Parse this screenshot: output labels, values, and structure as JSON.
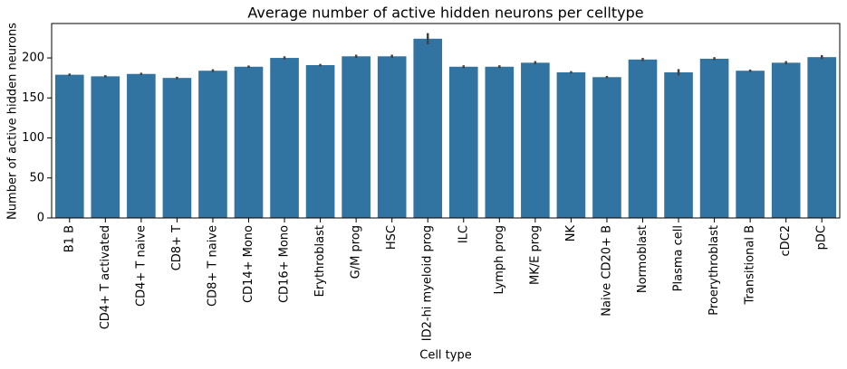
{
  "chart_data": {
    "type": "bar",
    "title": "Average number of active hidden neurons per celltype",
    "xlabel": "Cell type",
    "ylabel": "Number of active hidden neurons",
    "categories": [
      "B1 B",
      "CD4+ T activated",
      "CD4+ T naive",
      "CD8+ T",
      "CD8+ T naive",
      "CD14+ Mono",
      "CD16+ Mono",
      "Erythroblast",
      "G/M prog",
      "HSC",
      "ID2-hi myeloid prog",
      "ILC",
      "Lymph prog",
      "MK/E prog",
      "NK",
      "Naive CD20+ B",
      "Normoblast",
      "Plasma cell",
      "Proerythroblast",
      "Transitional B",
      "cDC2",
      "pDC"
    ],
    "values": [
      179,
      177,
      180,
      175,
      184,
      189,
      200,
      191,
      202,
      202,
      224,
      189,
      189,
      194,
      182,
      176,
      198,
      182,
      199,
      184,
      194,
      201
    ],
    "errors": [
      1.5,
      1.5,
      1.5,
      1.5,
      1.8,
      1.5,
      2,
      1.5,
      2,
      2,
      7,
      1.8,
      1.8,
      2,
      1.5,
      1.5,
      2,
      4,
      2,
      1.5,
      2,
      2.5
    ],
    "color": "#3274a1",
    "error_color": "#424242",
    "ylim": [
      0,
      243
    ],
    "yticks": [
      0,
      50,
      100,
      150,
      200
    ]
  }
}
